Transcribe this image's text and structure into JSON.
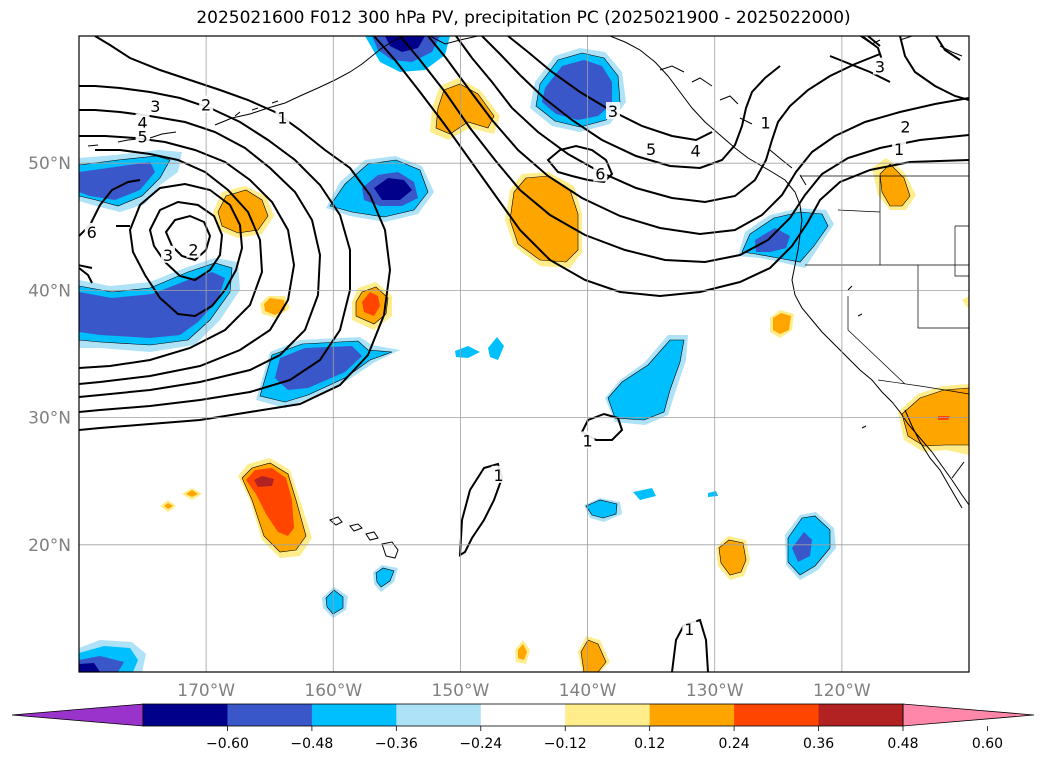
{
  "title": "2025021600 F012 300 hPa PV, precipitation PC (2025021900 - 2025022000)",
  "lon_ticks": [
    {
      "value": -170,
      "label": "170°W"
    },
    {
      "value": -160,
      "label": "160°W"
    },
    {
      "value": -150,
      "label": "150°W"
    },
    {
      "value": -140,
      "label": "140°W"
    },
    {
      "value": -130,
      "label": "130°W"
    },
    {
      "value": -120,
      "label": "120°W"
    }
  ],
  "lat_ticks": [
    {
      "value": 50,
      "label": "50°N"
    },
    {
      "value": 40,
      "label": "40°N"
    },
    {
      "value": 30,
      "label": "30°N"
    },
    {
      "value": 20,
      "label": "20°N"
    }
  ],
  "extent": {
    "lon_min": -180,
    "lon_max": -110,
    "lat_min": 10,
    "lat_max": 60
  },
  "colorbar": {
    "colors": [
      "#9933cc",
      "#00008b",
      "#3a57c9",
      "#00bfff",
      "#ade2f7",
      "#ffffff",
      "#ffec8b",
      "#ffa500",
      "#ff4500",
      "#b22222",
      "#ff88aa"
    ],
    "tick_labels": [
      "−0.60",
      "−0.48",
      "−0.36",
      "−0.24",
      "−0.12",
      "0.12",
      "0.24",
      "0.36",
      "0.48",
      "0.60"
    ]
  },
  "pv_contour_labels": [
    {
      "text": "3",
      "lon": -174,
      "lat": 54.5
    },
    {
      "text": "2",
      "lon": -170,
      "lat": 54.6
    },
    {
      "text": "4",
      "lon": -175,
      "lat": 53.2
    },
    {
      "text": "5",
      "lon": -175,
      "lat": 52.1
    },
    {
      "text": "1",
      "lon": -164,
      "lat": 53.6
    },
    {
      "text": "6",
      "lon": -179,
      "lat": 44.6
    },
    {
      "text": "3",
      "lon": -173,
      "lat": 42.8
    },
    {
      "text": "2",
      "lon": -171,
      "lat": 43.2
    },
    {
      "text": "3",
      "lon": -138,
      "lat": 54.1
    },
    {
      "text": "5",
      "lon": -135,
      "lat": 51.1
    },
    {
      "text": "4",
      "lon": -131.5,
      "lat": 51.0
    },
    {
      "text": "6",
      "lon": -139,
      "lat": 49.2
    },
    {
      "text": "1",
      "lon": -126,
      "lat": 53.2
    },
    {
      "text": "2",
      "lon": -115,
      "lat": 52.9
    },
    {
      "text": "1",
      "lon": -115.5,
      "lat": 51.1
    },
    {
      "text": "3",
      "lon": -117,
      "lat": 57.6
    },
    {
      "text": "1",
      "lon": -147,
      "lat": 25.5
    },
    {
      "text": "1",
      "lon": -140,
      "lat": 28.2
    },
    {
      "text": "1",
      "lon": -132,
      "lat": 13.4
    }
  ]
}
